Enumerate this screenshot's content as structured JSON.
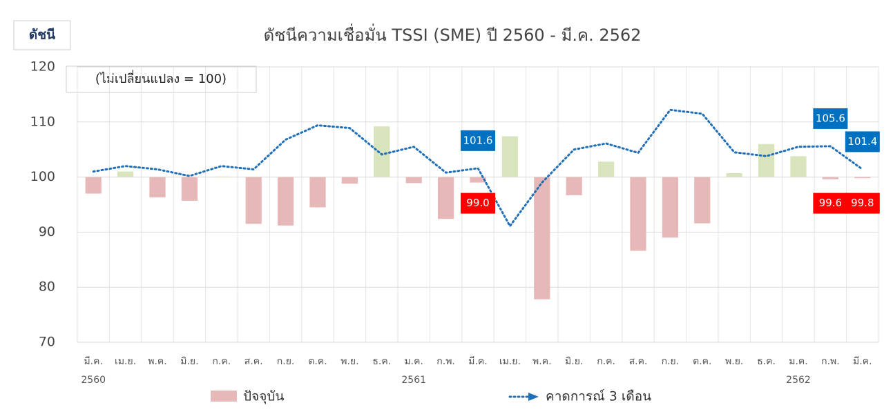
{
  "chart_data": {
    "type": "bar_line",
    "title": "ดัชนีความเชื่อมั่น TSSI (SME) ปี 2560 - มี.ค. 2562",
    "y_label": "ดัชนี",
    "note": "(ไม่เปลี่ยนแปลง = 100)",
    "categories": [
      "มี.ค.",
      "เม.ย.",
      "พ.ค.",
      "มิ.ย.",
      "ก.ค.",
      "ส.ค.",
      "ก.ย.",
      "ต.ค.",
      "พ.ย.",
      "ธ.ค.",
      "ม.ค.",
      "ก.พ.",
      "มี.ค.",
      "เม.ย.",
      "พ.ค.",
      "มิ.ย.",
      "ก.ค.",
      "ส.ค.",
      "ก.ย.",
      "ต.ค.",
      "พ.ย.",
      "ธ.ค.",
      "ม.ค.",
      "ก.พ.",
      "มี.ค."
    ],
    "year_labels": [
      "2560",
      null,
      null,
      null,
      null,
      null,
      null,
      null,
      null,
      null,
      "2561",
      null,
      null,
      null,
      null,
      null,
      null,
      null,
      null,
      null,
      null,
      null,
      "2562",
      null,
      null
    ],
    "bar_base": 100,
    "series": [
      {
        "name": "ปัจจุบัน",
        "kind": "bar",
        "color": "#e6b8b7",
        "positive_color": "#d8e4bc",
        "label_color": "#ff0000",
        "values": [
          97.0,
          101.0,
          96.3,
          95.7,
          100.1,
          91.5,
          91.2,
          94.5,
          98.8,
          109.2,
          98.9,
          92.4,
          99.0,
          107.4,
          77.8,
          96.7,
          102.8,
          86.6,
          89.0,
          91.6,
          100.7,
          106.0,
          103.8,
          99.6,
          99.8
        ],
        "value_labels": [
          null,
          null,
          null,
          null,
          null,
          null,
          null,
          null,
          null,
          null,
          null,
          null,
          "99.0",
          null,
          null,
          null,
          null,
          null,
          null,
          null,
          null,
          null,
          null,
          "99.6",
          "99.8"
        ]
      },
      {
        "name": "คาดการณ์ 3 เดือน",
        "kind": "line",
        "color": "#1f6fb8",
        "label_color": "#0070c0",
        "values": [
          101.0,
          102.0,
          101.4,
          100.2,
          102.0,
          101.4,
          106.8,
          109.4,
          108.9,
          104.1,
          105.5,
          100.8,
          101.6,
          91.1,
          99.0,
          105.0,
          106.1,
          104.4,
          112.2,
          111.5,
          104.5,
          103.8,
          105.5,
          105.6,
          101.4
        ],
        "value_labels": [
          null,
          null,
          null,
          null,
          null,
          null,
          null,
          null,
          null,
          null,
          null,
          null,
          "101.6",
          null,
          null,
          null,
          null,
          null,
          null,
          null,
          null,
          null,
          null,
          "105.6",
          "101.4"
        ]
      }
    ],
    "ylim": [
      70,
      120
    ],
    "yticks": [
      70,
      80,
      90,
      100,
      110,
      120
    ],
    "grid": true
  }
}
